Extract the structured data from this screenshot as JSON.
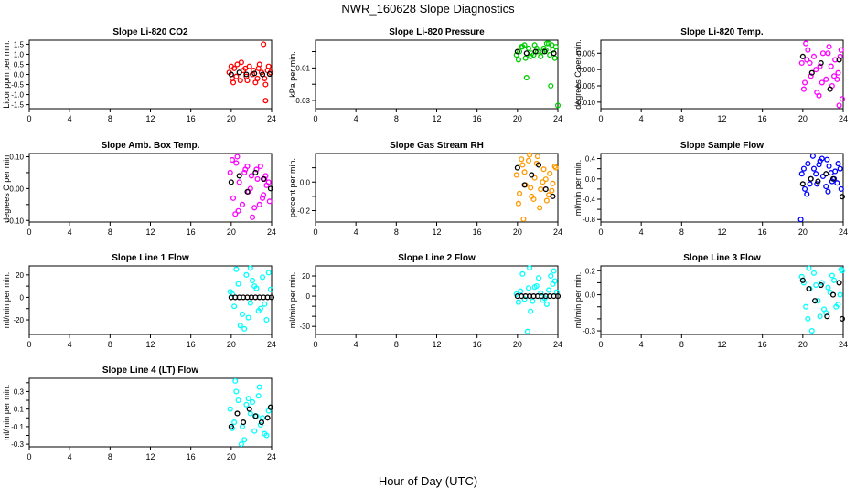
{
  "figure": {
    "title": "NWR_160628  Slope Diagnostics",
    "xlabel": "Hour of Day (UTC)",
    "xticks": [
      "0",
      "4",
      "8",
      "12",
      "16",
      "20",
      "24"
    ],
    "xlim": [
      0,
      24
    ]
  },
  "chart_data": [
    {
      "type": "scatter",
      "title": "Slope Li-820 CO2",
      "ylabel": "Licor ppm per min.",
      "ylim": [
        -1.7,
        1.7
      ],
      "yticks": [
        -1.5,
        -1.0,
        -0.5,
        0.0,
        0.5,
        1.0,
        1.5
      ],
      "ytick_labels": [
        "-1.5",
        "-1.0",
        "-0.5",
        "0.0",
        "0.5",
        "1.0",
        "1.5"
      ],
      "color": "#ff0000",
      "x_range": [
        19.7,
        24.0
      ],
      "series": [
        {
          "name": "samples",
          "x": [
            19.8,
            20.1,
            20.3,
            20.6,
            20.9,
            21.2,
            21.5,
            21.8,
            22.1,
            22.4,
            22.7,
            23.0,
            23.3,
            23.6,
            20.0,
            20.5,
            21.0,
            21.6,
            22.2,
            22.8,
            23.4,
            23.9,
            20.2,
            21.4,
            22.6,
            23.7,
            23.2,
            23.4
          ],
          "y": [
            0.1,
            -0.2,
            0.3,
            0.5,
            -0.3,
            0.2,
            -0.1,
            0.4,
            0.0,
            -0.4,
            0.3,
            0.1,
            -0.2,
            0.2,
            0.4,
            -0.1,
            0.6,
            -0.3,
            0.2,
            0.5,
            -0.5,
            0.1,
            -0.4,
            0.3,
            -0.2,
            0.4,
            1.5,
            -1.3
          ]
        },
        {
          "name": "references",
          "x": [
            20.0,
            20.8,
            21.5,
            22.3,
            23.1,
            23.8
          ],
          "y": [
            0.0,
            0.1,
            0.0,
            0.05,
            0.0,
            0.02
          ]
        }
      ]
    },
    {
      "type": "scatter",
      "title": "Slope Li-820 Pressure",
      "ylabel": "kPa per min.",
      "ylim": [
        -0.035,
        0.007
      ],
      "yticks": [
        -0.03,
        -0.02,
        -0.01,
        0.0
      ],
      "ytick_labels": [
        "-0.03",
        "",
        "-0.01",
        ""
      ],
      "color": "#00cc00",
      "x_range": [
        19.7,
        24.0
      ],
      "series": [
        {
          "name": "samples",
          "x": [
            19.9,
            20.2,
            20.5,
            20.8,
            21.1,
            21.4,
            21.7,
            22.0,
            22.3,
            22.6,
            22.9,
            23.2,
            23.5,
            23.8,
            20.1,
            20.7,
            21.3,
            21.9,
            22.5,
            23.1,
            23.7,
            20.4,
            21.6,
            22.8,
            23.4,
            20.9,
            23.3,
            24.0
          ],
          "y": [
            -0.002,
            0.0,
            0.003,
            -0.004,
            0.002,
            -0.001,
            0.004,
            0.0,
            -0.003,
            0.002,
            0.005,
            -0.002,
            0.001,
            0.003,
            -0.005,
            0.004,
            -0.003,
            0.002,
            0.0,
            0.005,
            -0.004,
            0.003,
            -0.002,
            0.001,
            0.004,
            -0.016,
            -0.021,
            -0.033
          ]
        },
        {
          "name": "references",
          "x": [
            20.0,
            20.9,
            21.8,
            22.7,
            23.6
          ],
          "y": [
            0.0,
            -0.001,
            0.0,
            0.0,
            -0.001
          ]
        }
      ]
    },
    {
      "type": "scatter",
      "title": "Slope Li-820 Temp.",
      "ylabel": "degrees C per min.",
      "ylim": [
        -0.012,
        0.009
      ],
      "yticks": [
        -0.01,
        -0.005,
        0.0,
        0.005
      ],
      "ytick_labels": [
        "-0.010",
        "-0.005",
        "0.000",
        "0.005"
      ],
      "color": "#ff00ff",
      "x_range": [
        19.7,
        24.0
      ],
      "series": [
        {
          "name": "samples",
          "x": [
            19.9,
            20.2,
            20.5,
            20.8,
            21.1,
            21.4,
            21.7,
            22.0,
            22.3,
            22.6,
            22.9,
            23.2,
            23.5,
            23.8,
            20.1,
            20.7,
            21.3,
            21.9,
            22.5,
            23.1,
            23.7,
            20.4,
            21.6,
            22.8,
            23.4,
            20.3,
            23.6,
            23.9
          ],
          "y": [
            0.002,
            -0.004,
            0.006,
            -0.002,
            0.004,
            -0.007,
            0.001,
            0.005,
            -0.003,
            0.007,
            -0.005,
            0.003,
            -0.001,
            0.006,
            -0.006,
            0.002,
            0.0,
            -0.004,
            0.005,
            -0.002,
            0.004,
            0.003,
            -0.008,
            0.001,
            -0.003,
            0.008,
            -0.011,
            -0.009
          ]
        },
        {
          "name": "references",
          "x": [
            20.0,
            20.9,
            21.8,
            22.7,
            23.6
          ],
          "y": [
            0.004,
            -0.001,
            0.002,
            -0.006,
            0.003
          ]
        }
      ]
    },
    {
      "type": "scatter",
      "title": "Slope Amb. Box Temp.",
      "ylabel": "degrees C per min.",
      "ylim": [
        -0.105,
        0.11
      ],
      "yticks": [
        -0.1,
        -0.05,
        0.0,
        0.05,
        0.1
      ],
      "ytick_labels": [
        "-0.10",
        "",
        "0.00",
        "",
        "0.10"
      ],
      "color": "#ff00ff",
      "x_range": [
        19.7,
        24.0
      ],
      "series": [
        {
          "name": "samples",
          "x": [
            19.9,
            20.2,
            20.5,
            20.8,
            21.1,
            21.4,
            21.7,
            22.0,
            22.3,
            22.6,
            22.9,
            23.2,
            23.5,
            23.8,
            20.1,
            20.7,
            21.3,
            21.9,
            22.5,
            23.1,
            23.7,
            20.4,
            21.6,
            22.8,
            23.4,
            20.6,
            22.1,
            23.3
          ],
          "y": [
            0.05,
            -0.03,
            0.08,
            0.02,
            -0.05,
            0.06,
            -0.01,
            0.04,
            -0.06,
            0.03,
            0.07,
            -0.02,
            0.01,
            -0.04,
            0.09,
            -0.07,
            0.05,
            0.0,
            0.06,
            -0.03,
            0.02,
            -0.08,
            0.07,
            -0.05,
            0.04,
            0.1,
            -0.09,
            0.03
          ]
        },
        {
          "name": "references",
          "x": [
            20.0,
            20.8,
            21.6,
            22.4,
            23.2,
            23.9
          ],
          "y": [
            0.02,
            0.04,
            -0.01,
            0.05,
            0.03,
            0.0
          ]
        }
      ]
    },
    {
      "type": "scatter",
      "title": "Slope Gas Stream RH",
      "ylabel": "percent per min.",
      "ylim": [
        -0.28,
        0.2
      ],
      "yticks": [
        -0.2,
        -0.1,
        0.0,
        0.1
      ],
      "ytick_labels": [
        "-0.2",
        "",
        "0.0",
        ""
      ],
      "color": "#ff9900",
      "x_range": [
        19.7,
        24.0
      ],
      "series": [
        {
          "name": "samples",
          "x": [
            19.9,
            20.2,
            20.5,
            20.8,
            21.1,
            21.4,
            21.7,
            22.0,
            22.3,
            22.6,
            22.9,
            23.2,
            23.5,
            23.8,
            20.1,
            20.7,
            21.3,
            21.9,
            22.5,
            23.1,
            23.7,
            20.4,
            21.6,
            22.8,
            23.4,
            20.6,
            21.2,
            22.2
          ],
          "y": [
            0.05,
            -0.08,
            0.12,
            -0.02,
            0.15,
            -0.1,
            0.03,
            0.18,
            -0.05,
            0.09,
            -0.13,
            0.06,
            -0.01,
            0.1,
            -0.15,
            0.07,
            -0.04,
            0.13,
            0.0,
            -0.09,
            0.11,
            0.16,
            -0.12,
            0.02,
            -0.06,
            -0.26,
            0.19,
            -0.18
          ]
        },
        {
          "name": "references",
          "x": [
            20.0,
            20.7,
            21.4,
            22.1,
            22.8,
            23.5
          ],
          "y": [
            0.1,
            -0.02,
            0.05,
            0.12,
            -0.05,
            -0.1
          ]
        }
      ]
    },
    {
      "type": "scatter",
      "title": "Slope Sample Flow",
      "ylabel": "ml/min per min.",
      "ylim": [
        -0.85,
        0.5
      ],
      "yticks": [
        -0.8,
        -0.6,
        -0.4,
        -0.2,
        0.0,
        0.2,
        0.4
      ],
      "ytick_labels": [
        "-0.8",
        "",
        "-0.4",
        "",
        "0.0",
        "",
        "0.4"
      ],
      "color": "#0000ff",
      "x_range": [
        19.7,
        24.0
      ],
      "series": [
        {
          "name": "samples",
          "x": [
            19.9,
            20.2,
            20.5,
            20.8,
            21.1,
            21.4,
            21.7,
            22.0,
            22.3,
            22.6,
            22.9,
            23.2,
            23.5,
            23.8,
            20.1,
            20.7,
            21.3,
            21.9,
            22.5,
            23.1,
            23.7,
            20.4,
            21.6,
            22.8,
            23.4,
            21.0,
            22.4,
            19.8
          ],
          "y": [
            0.1,
            -0.2,
            0.3,
            0.0,
            0.2,
            -0.1,
            0.35,
            0.05,
            -0.15,
            0.25,
            -0.05,
            0.15,
            0.3,
            -0.2,
            0.2,
            -0.1,
            0.1,
            0.4,
            -0.25,
            0.0,
            0.2,
            -0.3,
            0.28,
            0.12,
            -0.08,
            0.45,
            0.38,
            -0.8
          ]
        },
        {
          "name": "references",
          "x": [
            20.0,
            20.8,
            21.5,
            22.3,
            23.0,
            23.9
          ],
          "y": [
            -0.1,
            0.0,
            -0.05,
            0.1,
            0.0,
            -0.35
          ]
        }
      ]
    },
    {
      "type": "scatter",
      "title": "Slope Line 1 Flow",
      "ylabel": "ml/min per min.",
      "ylim": [
        -33,
        28
      ],
      "yticks": [
        -20,
        -10,
        0,
        10,
        20
      ],
      "ytick_labels": [
        "-20",
        "",
        "0",
        "",
        "20"
      ],
      "color": "#00ffff",
      "x_range": [
        19.7,
        24.0
      ],
      "series": [
        {
          "name": "samples",
          "x": [
            19.9,
            20.3,
            20.7,
            21.1,
            21.5,
            21.9,
            22.3,
            22.7,
            23.1,
            23.5,
            23.9,
            20.5,
            21.3,
            22.1,
            22.9,
            23.7,
            20.1,
            21.7,
            22.5,
            23.3,
            20.9,
            21.9
          ],
          "y": [
            5,
            -8,
            12,
            -15,
            20,
            -5,
            10,
            -12,
            18,
            -20,
            7,
            25,
            -28,
            15,
            -10,
            22,
            3,
            -18,
            8,
            -6,
            -25,
            26
          ]
        },
        {
          "name": "references",
          "x": [
            20.0,
            20.4,
            20.8,
            21.2,
            21.6,
            22.0,
            22.4,
            22.8,
            23.2,
            23.6,
            24.0
          ],
          "y": [
            0,
            0,
            0,
            0,
            0,
            0,
            0,
            0,
            0,
            0,
            0
          ]
        }
      ]
    },
    {
      "type": "scatter",
      "title": "Slope Line 2 Flow",
      "ylabel": "ml/min per min.",
      "ylim": [
        -38,
        30
      ],
      "yticks": [
        -30,
        -20,
        -10,
        0,
        10,
        20
      ],
      "ytick_labels": [
        "-30",
        "",
        "",
        "0",
        "",
        "20"
      ],
      "color": "#00ffff",
      "x_range": [
        19.7,
        24.0
      ],
      "series": [
        {
          "name": "samples",
          "x": [
            19.9,
            20.3,
            20.7,
            21.1,
            21.5,
            21.9,
            22.3,
            22.7,
            23.1,
            23.5,
            23.9,
            20.5,
            21.3,
            22.1,
            22.9,
            23.7,
            20.1,
            21.7,
            22.5,
            23.3,
            21.0,
            21.2,
            23.6
          ],
          "y": [
            2,
            5,
            -3,
            8,
            -5,
            10,
            3,
            -2,
            6,
            12,
            4,
            22,
            -15,
            18,
            -8,
            15,
            -6,
            9,
            -4,
            20,
            -35,
            28,
            25
          ]
        },
        {
          "name": "references",
          "x": [
            20.0,
            20.4,
            20.8,
            21.2,
            21.6,
            22.0,
            22.4,
            22.8,
            23.2,
            23.6,
            24.0
          ],
          "y": [
            0,
            0,
            0,
            0,
            0,
            0,
            0,
            0,
            0,
            0,
            0
          ]
        }
      ]
    },
    {
      "type": "scatter",
      "title": "Slope Line 3 Flow",
      "ylabel": "ml/min per min.",
      "ylim": [
        -0.33,
        0.24
      ],
      "yticks": [
        -0.3,
        -0.2,
        -0.1,
        0.0,
        0.1,
        0.2
      ],
      "ytick_labels": [
        "-0.3",
        "",
        "",
        "0.0",
        "",
        "0.2"
      ],
      "color": "#00ffff",
      "x_range": [
        19.7,
        24.0
      ],
      "series": [
        {
          "name": "samples",
          "x": [
            19.9,
            20.3,
            20.7,
            21.1,
            21.5,
            21.9,
            22.3,
            22.7,
            23.1,
            23.5,
            23.9,
            20.5,
            21.3,
            22.1,
            22.9,
            23.7,
            20.1,
            21.7,
            22.5,
            23.3,
            20.9,
            20.6,
            23.8
          ],
          "y": [
            0.15,
            -0.1,
            0.05,
            0.18,
            -0.05,
            0.1,
            -0.15,
            0.02,
            0.12,
            -0.08,
            0.2,
            -0.2,
            0.08,
            -0.12,
            0.16,
            0.0,
            0.1,
            -0.18,
            0.06,
            -0.1,
            -0.3,
            0.22,
            0.21
          ]
        },
        {
          "name": "references",
          "x": [
            20.0,
            20.6,
            21.2,
            21.8,
            22.4,
            23.0,
            23.6,
            23.9
          ],
          "y": [
            0.12,
            0.05,
            -0.05,
            0.08,
            -0.18,
            0.0,
            0.1,
            -0.2
          ]
        }
      ]
    },
    {
      "type": "scatter",
      "title": "Slope Line 4 (LT) Flow",
      "ylabel": "ml/min per min.",
      "ylim": [
        -0.33,
        0.45
      ],
      "yticks": [
        -0.3,
        -0.2,
        -0.1,
        0.0,
        0.1,
        0.2,
        0.3,
        0.4
      ],
      "ytick_labels": [
        "-0.3",
        "",
        "-0.1",
        "",
        "0.1",
        "",
        "0.3",
        ""
      ],
      "color": "#00ffff",
      "x_range": [
        19.7,
        24.0
      ],
      "series": [
        {
          "name": "samples",
          "x": [
            19.9,
            20.3,
            20.7,
            21.1,
            21.5,
            21.9,
            22.3,
            22.7,
            23.1,
            23.5,
            23.9,
            20.5,
            21.3,
            22.1,
            22.9,
            23.7,
            20.1,
            21.7,
            22.5,
            23.3,
            20.4,
            21.0,
            22.8
          ],
          "y": [
            0.1,
            -0.05,
            0.2,
            -0.1,
            0.15,
            0.05,
            -0.15,
            0.25,
            0.0,
            -0.2,
            0.12,
            0.3,
            -0.25,
            0.18,
            -0.08,
            0.08,
            -0.12,
            0.22,
            0.02,
            -0.18,
            0.42,
            -0.3,
            0.35
          ]
        },
        {
          "name": "references",
          "x": [
            20.0,
            20.6,
            21.2,
            21.8,
            22.4,
            23.0,
            23.6,
            23.9
          ],
          "y": [
            -0.1,
            0.05,
            -0.05,
            0.1,
            0.02,
            -0.05,
            0.0,
            0.12
          ]
        }
      ]
    }
  ]
}
